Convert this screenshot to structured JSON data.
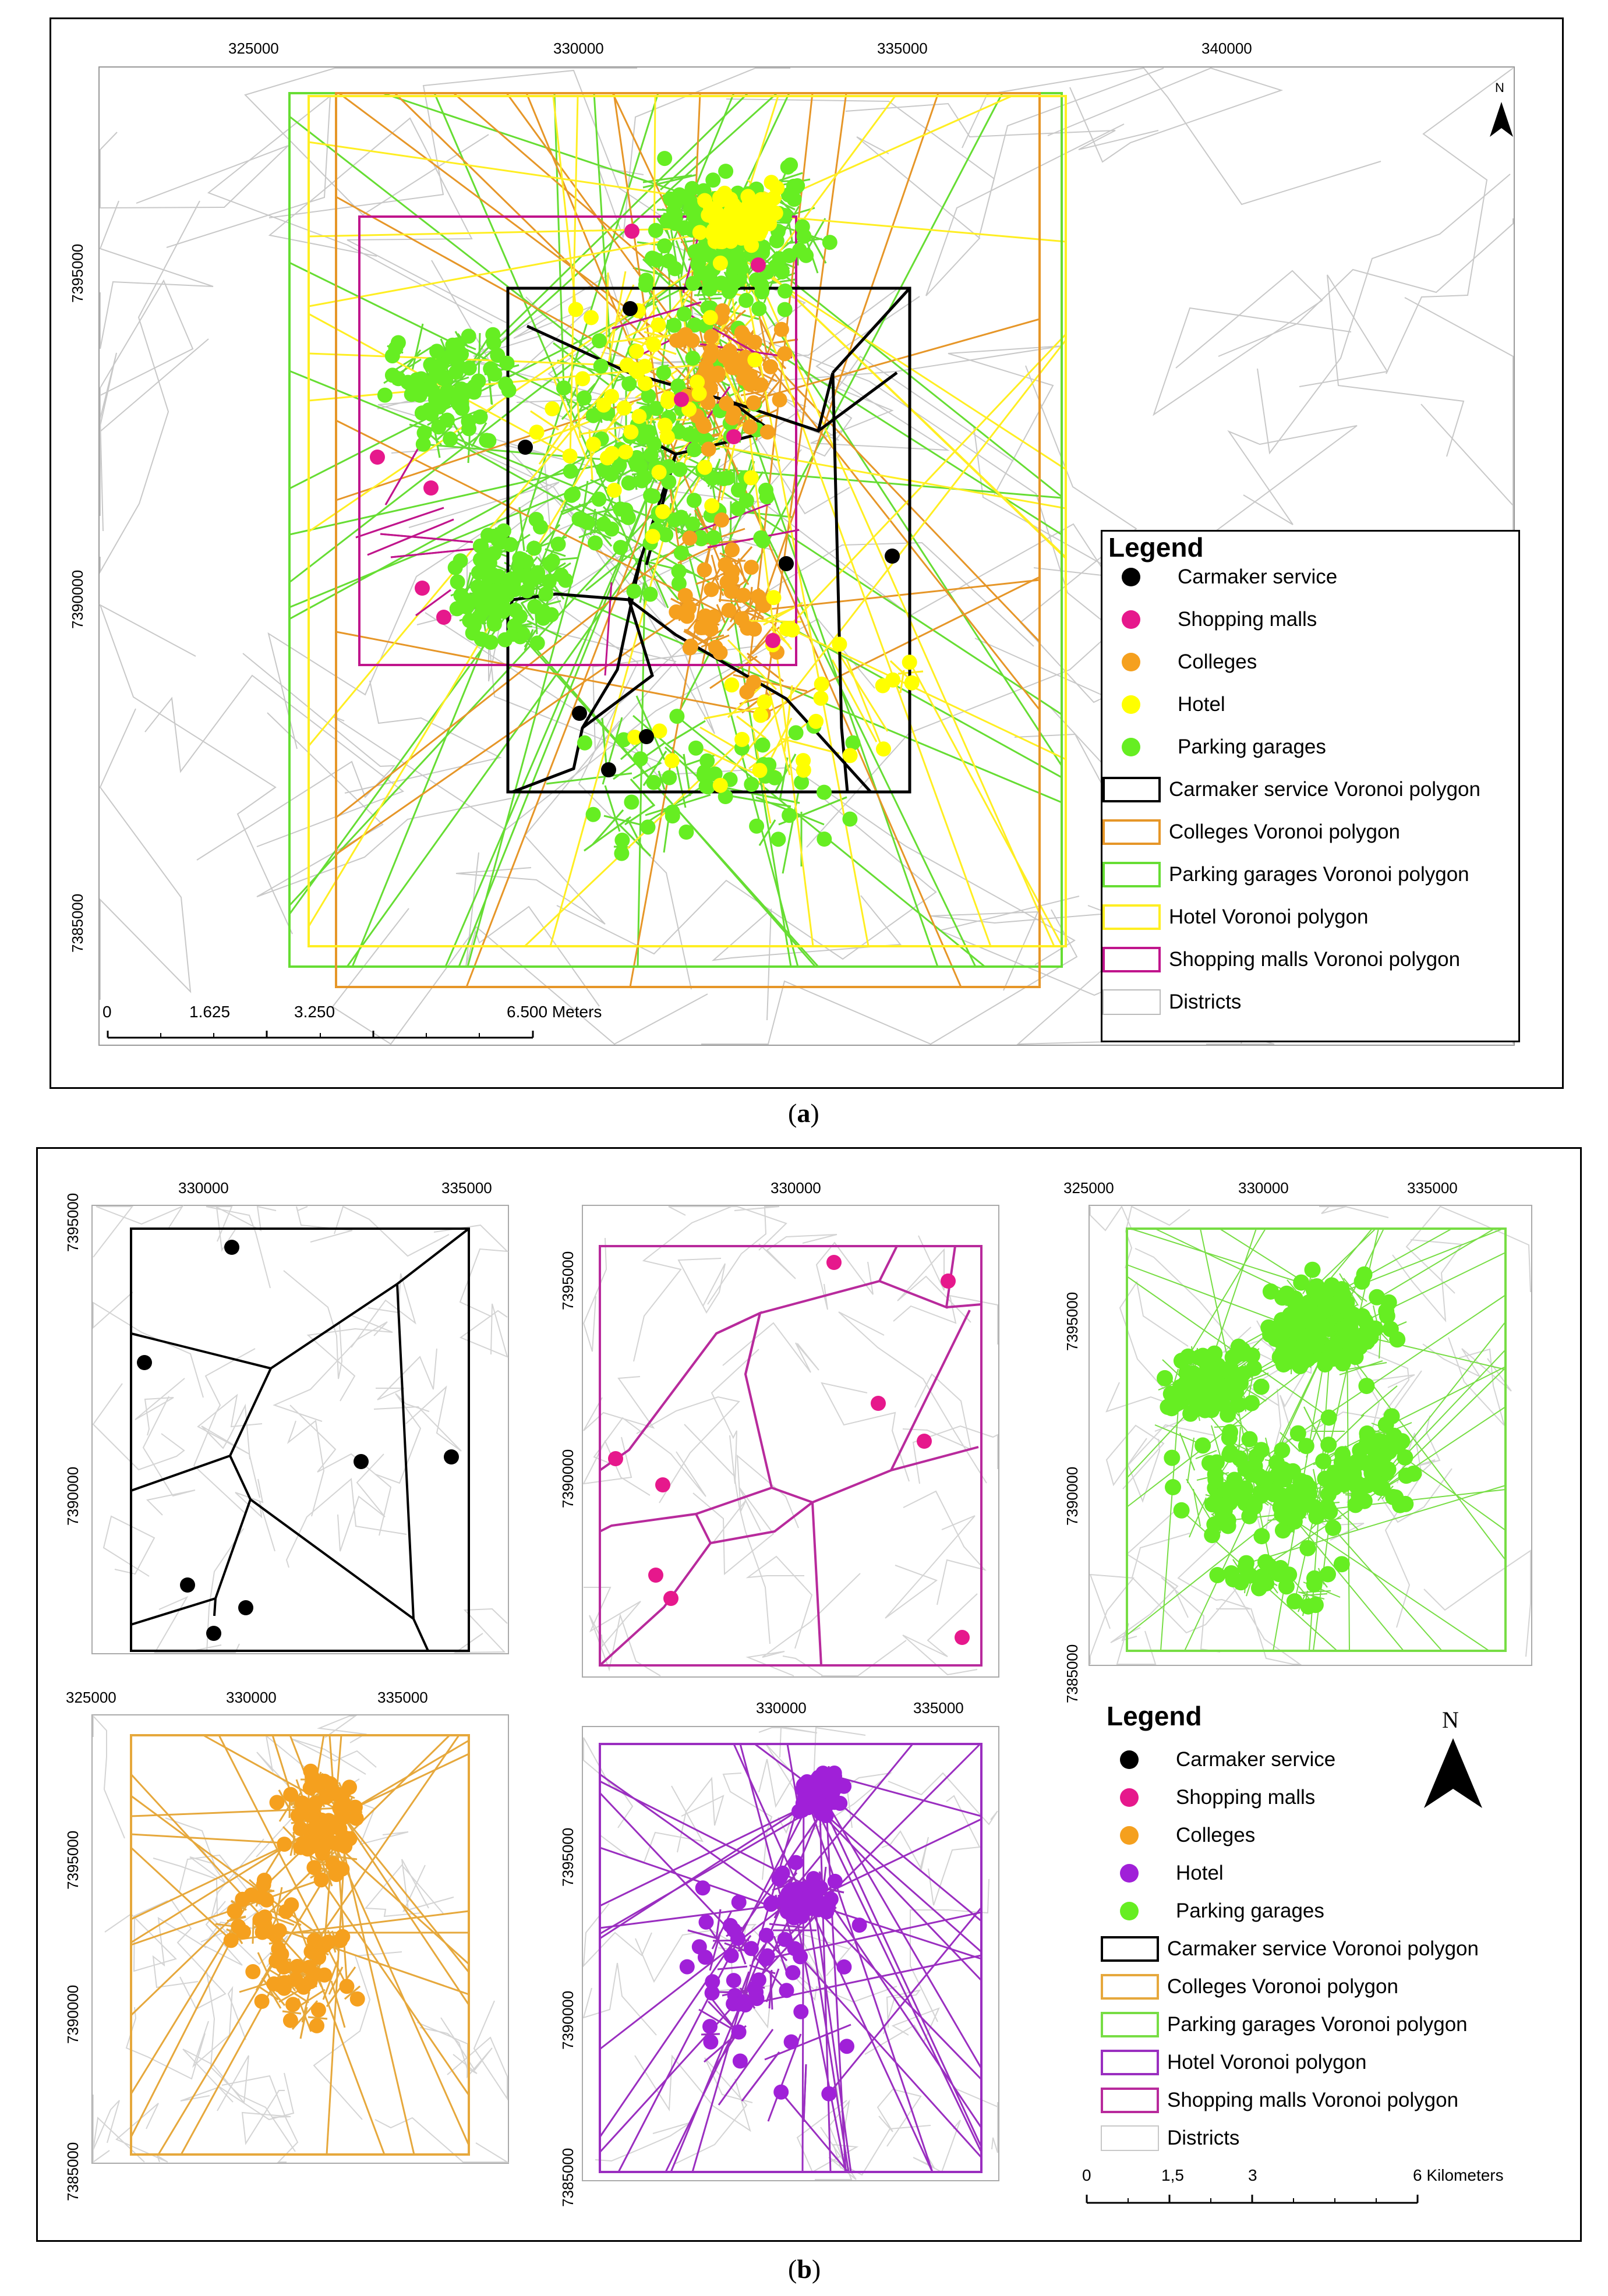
{
  "panel_a": {
    "caption_letter": "a",
    "x_ticks": [
      "325000",
      "330000",
      "335000",
      "340000"
    ],
    "y_ticks": [
      "7395000",
      "7390000",
      "7385000"
    ],
    "north_label": "N",
    "scale_labels": [
      "0",
      "1.625",
      "3.250",
      "6.500 Meters"
    ],
    "legend": {
      "title": "Legend",
      "points": [
        {
          "label": "Carmaker service",
          "color": "#000000"
        },
        {
          "label": "Shopping malls",
          "color": "#e6188c"
        },
        {
          "label": "Colleges",
          "color": "#f5a01e"
        },
        {
          "label": "Hotel",
          "color": "#ffff00"
        },
        {
          "label": "Parking garages",
          "color": "#66ee22"
        }
      ],
      "polygons": [
        {
          "label": "Carmaker service Voronoi polygon",
          "color": "#000000"
        },
        {
          "label": "Colleges Voronoi polygon",
          "color": "#e69628"
        },
        {
          "label": "Parking garages Voronoi polygon",
          "color": "#66dd33"
        },
        {
          "label": "Hotel Voronoi polygon",
          "color": "#ffee22"
        },
        {
          "label": "Shopping malls Voronoi polygon",
          "color": "#c0158c"
        }
      ],
      "districts": {
        "label": "Districts",
        "color": "#bbbbbb"
      }
    }
  },
  "panel_b": {
    "caption_letter": "b",
    "map1_x": [
      "330000",
      "335000"
    ],
    "map1_y": [
      "7395000",
      "7390000"
    ],
    "map2_x": [
      "330000"
    ],
    "map2_y": [
      "7395000",
      "7390000"
    ],
    "map3_x": [
      "325000",
      "330000",
      "335000"
    ],
    "map3_y": [
      "7395000",
      "7390000",
      "7385000"
    ],
    "map4_x": [
      "325000",
      "330000",
      "335000"
    ],
    "map4_y": [
      "7395000",
      "7390000",
      "7385000"
    ],
    "map5_x": [
      "330000",
      "335000"
    ],
    "map5_y": [
      "7395000",
      "7390000",
      "7385000"
    ],
    "north_label": "N",
    "scale_labels": [
      "0",
      "1,5",
      "3",
      "6 Kilometers"
    ],
    "legend": {
      "title": "Legend",
      "points": [
        {
          "label": "Carmaker service",
          "color": "#000000"
        },
        {
          "label": "Shopping malls",
          "color": "#e6188c"
        },
        {
          "label": "Colleges",
          "color": "#f5a01e"
        },
        {
          "label": "Hotel",
          "color": "#a020d8"
        },
        {
          "label": "Parking garages",
          "color": "#66ee22"
        }
      ],
      "polygons": [
        {
          "label": "Carmaker service Voronoi polygon",
          "color": "#000000"
        },
        {
          "label": "Colleges Voronoi polygon",
          "color": "#e6a83c"
        },
        {
          "label": "Parking garages Voronoi polygon",
          "color": "#77dd44"
        },
        {
          "label": "Hotel Voronoi polygon",
          "color": "#9a2ec0"
        },
        {
          "label": "Shopping malls Voronoi polygon",
          "color": "#b82a9c"
        }
      ],
      "districts": {
        "label": "Districts",
        "color": "#c8c8c8"
      }
    }
  }
}
